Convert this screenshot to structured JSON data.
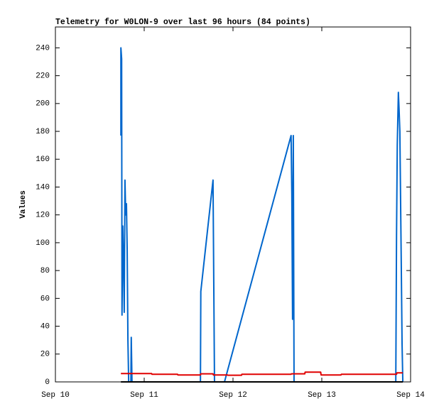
{
  "chart_data": {
    "type": "line",
    "title": "Telemetry for W0LON-9 over last 96 hours (84 points)",
    "y_label": "Values",
    "xlim": [
      0,
      96
    ],
    "xticks": [
      {
        "value": 0,
        "label": "Sep 10"
      },
      {
        "value": 24,
        "label": "Sep 11"
      },
      {
        "value": 48,
        "label": "Sep 12"
      },
      {
        "value": 72,
        "label": "Sep 13"
      },
      {
        "value": 96,
        "label": "Sep 14"
      }
    ],
    "ylim": [
      0,
      255
    ],
    "yticks": [
      0,
      20,
      40,
      60,
      80,
      100,
      120,
      140,
      160,
      180,
      200,
      220,
      240
    ],
    "series": [
      {
        "color": "#000000",
        "x": [
          17.7,
          93.9
        ],
        "values": [
          0,
          0
        ]
      },
      {
        "color": "#e00000",
        "x": [
          17.7,
          26.0,
          26.1,
          33.0,
          33.1,
          39.2,
          39.3,
          42.6,
          42.7,
          46.5,
          46.6,
          50.3,
          50.4,
          63.7,
          63.8,
          67.4,
          67.5,
          71.7,
          71.8,
          77.2,
          77.3,
          92.2,
          92.3,
          93.9
        ],
        "values": [
          6,
          6,
          5.5,
          5.5,
          5,
          5,
          5.8,
          5.8,
          5,
          5,
          4.8,
          4.8,
          5.5,
          5.5,
          5.8,
          5.8,
          7,
          7,
          5,
          5,
          5.5,
          5.5,
          6.5,
          6.5
        ]
      },
      {
        "color": "#0066cc",
        "x": [
          17.7,
          17.7,
          17.9,
          18.0,
          18.2,
          18.4,
          18.6,
          18.8,
          19.0,
          19.2,
          19.4,
          19.6,
          19.8,
          20.4,
          20.5,
          20.7,
          39.2,
          39.3,
          42.6,
          42.8,
          43.0,
          45.7,
          63.7,
          63.9,
          64.1,
          64.3,
          64.5,
          92.0,
          92.2,
          92.4,
          92.7,
          92.9,
          93.1,
          93.3,
          93.5,
          93.7,
          93.9
        ],
        "values": [
          177,
          240,
          232,
          48,
          112,
          88,
          50,
          145,
          120,
          128,
          95,
          30,
          0,
          0,
          32,
          0,
          0,
          65,
          145,
          72,
          0,
          0,
          177,
          135,
          45,
          177,
          0,
          0,
          105,
          170,
          208,
          195,
          180,
          130,
          80,
          27,
          0
        ]
      }
    ]
  }
}
